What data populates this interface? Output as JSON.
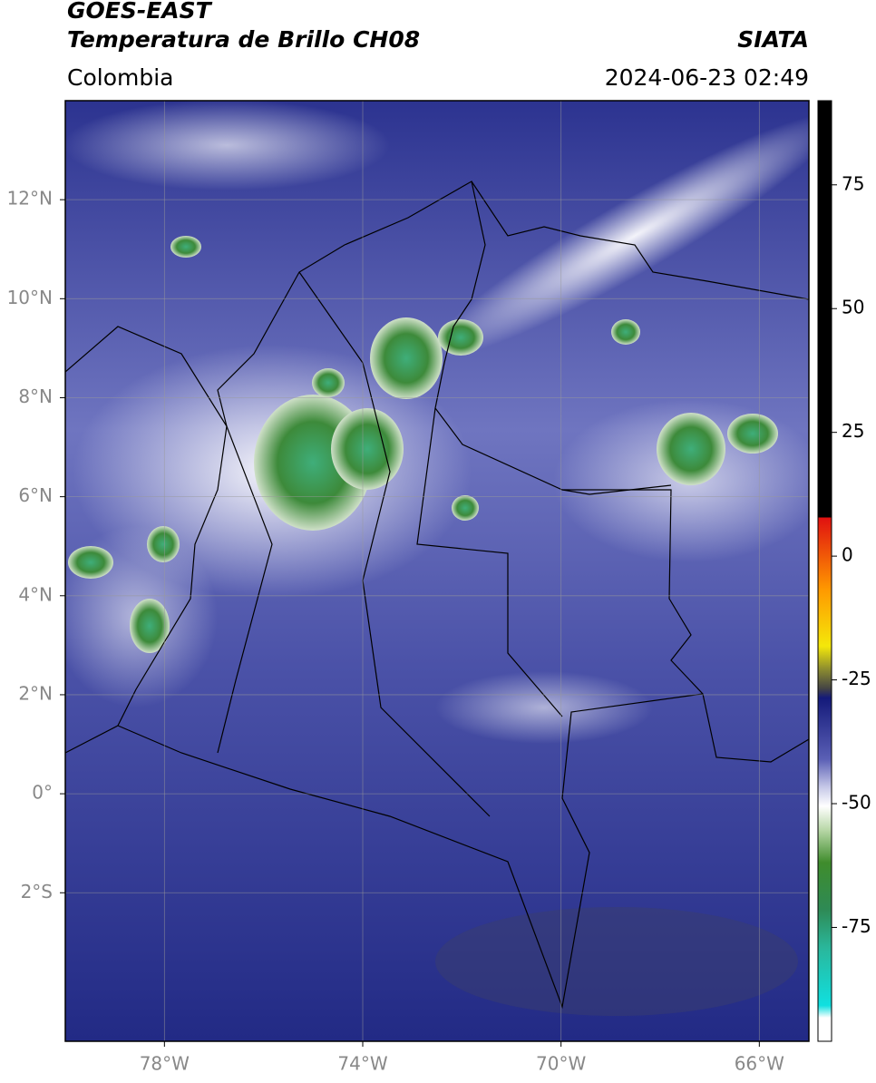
{
  "header": {
    "title": "GOES-EAST",
    "subtitle": "Temperatura de Brillo CH08",
    "source": "SIATA",
    "region": "Colombia",
    "datetime": "2024-06-23 02:49"
  },
  "map": {
    "xlim": [
      -80,
      -65
    ],
    "ylim": [
      -5,
      14
    ],
    "xticks": [
      {
        "value": -78,
        "label": "78°W"
      },
      {
        "value": -74,
        "label": "74°W"
      },
      {
        "value": -70,
        "label": "70°W"
      },
      {
        "value": -66,
        "label": "66°W"
      }
    ],
    "yticks": [
      {
        "value": 12,
        "label": "12°N"
      },
      {
        "value": 10,
        "label": "10°N"
      },
      {
        "value": 8,
        "label": "8°N"
      },
      {
        "value": 6,
        "label": "6°N"
      },
      {
        "value": 4,
        "label": "4°N"
      },
      {
        "value": 2,
        "label": "2°N"
      },
      {
        "value": 0,
        "label": "0°"
      },
      {
        "value": -2,
        "label": "2°S"
      }
    ],
    "grid": true
  },
  "colorbar": {
    "lim": [
      -98,
      92
    ],
    "ticks": [
      75,
      50,
      25,
      0,
      -25,
      -50,
      -75
    ]
  }
}
